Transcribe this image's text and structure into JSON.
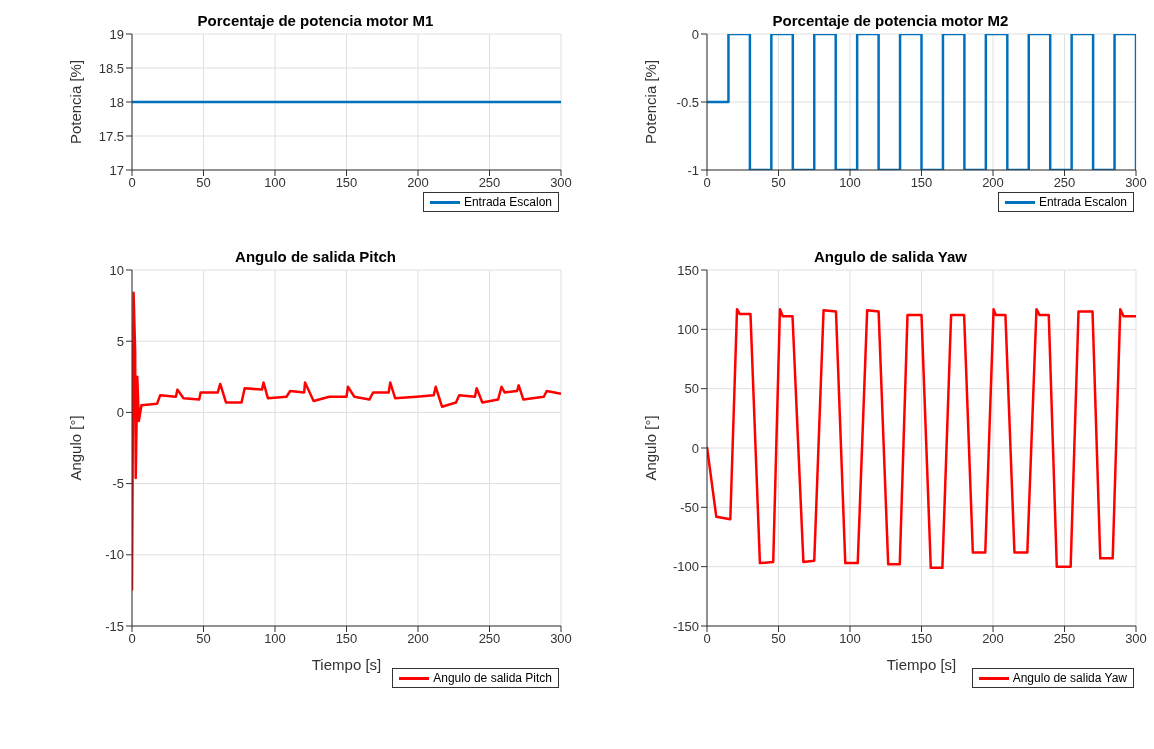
{
  "chart_data": [
    {
      "type": "line",
      "title": "Porcentaje de potencia motor M1",
      "ylabel": "Potencia [%]",
      "x": [
        0,
        300
      ],
      "series": [
        {
          "name": "Entrada Escalon",
          "color": "#0072bd",
          "values": [
            18,
            18
          ]
        }
      ],
      "xlim": [
        0,
        300
      ],
      "xticks": [
        0,
        50,
        100,
        150,
        200,
        250,
        300
      ],
      "ylim": [
        17,
        19
      ],
      "yticks": [
        17,
        17.5,
        18,
        18.5,
        19
      ],
      "grid": true,
      "legend": "bottom right"
    },
    {
      "type": "step",
      "title": "Porcentaje de potencia motor M2",
      "ylabel": "Potencia [%]",
      "x": [
        0,
        15,
        30,
        45,
        60,
        75,
        90,
        105,
        120,
        135,
        150,
        165,
        180,
        195,
        210,
        225,
        240,
        255,
        270,
        285,
        300
      ],
      "series": [
        {
          "name": "Entrada Escalon",
          "color": "#0072bd",
          "values": [
            -0.5,
            0,
            -1,
            0,
            -1,
            0,
            -1,
            0,
            -1,
            0,
            -1,
            0,
            -1,
            0,
            -1,
            0,
            -1,
            0,
            -1,
            0,
            -1
          ]
        }
      ],
      "xlim": [
        0,
        300
      ],
      "xticks": [
        0,
        50,
        100,
        150,
        200,
        250,
        300
      ],
      "ylim": [
        -1,
        0
      ],
      "yticks": [
        -1,
        -0.5,
        0
      ],
      "grid": true,
      "legend": "bottom right"
    },
    {
      "type": "line",
      "title": "Angulo de salida Pitch",
      "xlabel": "Tiempo [s]",
      "ylabel": "Angulo [°]",
      "x": [
        0,
        1.1,
        2.2,
        2.6,
        3.7,
        4.8,
        6.6,
        17.5,
        19.7,
        30.7,
        31.8,
        36,
        47,
        48,
        60,
        61.7,
        65.7,
        76.6,
        78.8,
        90.9,
        92,
        95,
        108,
        110.6,
        120.4,
        121,
        127,
        138,
        150,
        151,
        155.5,
        166,
        168.6,
        179.5,
        180.6,
        184,
        199,
        211,
        212.4,
        216.8,
        226.6,
        228.8,
        239.8,
        241,
        245,
        256,
        258.4,
        260.6,
        269.3,
        270.4,
        273.7,
        288,
        290,
        300
      ],
      "series": [
        {
          "name": "Angulo de salida Pitch",
          "color": "#ff0000",
          "values": [
            -12.5,
            8.4,
            4.3,
            -4.6,
            2.5,
            -0.6,
            0.5,
            0.6,
            1.2,
            1.1,
            1.6,
            1.0,
            0.9,
            1.4,
            1.4,
            2.0,
            0.7,
            0.7,
            1.7,
            1.6,
            2.1,
            1.0,
            1.1,
            1.5,
            1.4,
            2.1,
            0.8,
            1.1,
            1.1,
            1.8,
            1.1,
            0.9,
            1.4,
            1.4,
            2.1,
            1.0,
            1.1,
            1.2,
            1.8,
            0.4,
            0.7,
            1.2,
            1.1,
            1.7,
            0.7,
            0.9,
            1.8,
            1.4,
            1.5,
            1.9,
            0.9,
            1.1,
            1.5,
            1.3
          ]
        }
      ],
      "xlim": [
        0,
        300
      ],
      "xticks": [
        0,
        50,
        100,
        150,
        200,
        250,
        300
      ],
      "ylim": [
        -15,
        10
      ],
      "yticks": [
        -15,
        -10,
        -5,
        0,
        5,
        10
      ],
      "grid": true,
      "legend": "bottom right"
    },
    {
      "type": "line",
      "title": "Angulo de salida Yaw",
      "xlabel": "Tiempo [s]",
      "ylabel": "Angulo [°]",
      "x": [
        0,
        6.5,
        16.3,
        21,
        22.8,
        30.4,
        37,
        46.3,
        51,
        53,
        59.8,
        67.4,
        75,
        81.5,
        90.2,
        96.7,
        105.4,
        112,
        120,
        126.7,
        134.8,
        140.2,
        150,
        156.5,
        164.6,
        170.7,
        179.8,
        185.9,
        194.6,
        200.4,
        202,
        208.7,
        215,
        224,
        230.4,
        232.6,
        239,
        244.6,
        254.3,
        259.8,
        269.6,
        275,
        283.7,
        289,
        291.3,
        300
      ],
      "series": [
        {
          "name": "Angulo de salida Yaw",
          "color": "#ff0000",
          "values": [
            1,
            -58,
            -60,
            117,
            113,
            113,
            -97,
            -96,
            117,
            111,
            111,
            -96,
            -95,
            116,
            115,
            -97,
            -97,
            116,
            115,
            -98,
            -98,
            112,
            112,
            -101,
            -101,
            112,
            112,
            -88,
            -88,
            117,
            112,
            112,
            -88,
            -88,
            117,
            112,
            112,
            -100,
            -100,
            115,
            115,
            -93,
            -93,
            117,
            111,
            111
          ]
        }
      ],
      "xlim": [
        0,
        300
      ],
      "xticks": [
        0,
        50,
        100,
        150,
        200,
        250,
        300
      ],
      "ylim": [
        -150,
        150
      ],
      "yticks": [
        -150,
        -100,
        -50,
        0,
        50,
        100,
        150
      ],
      "grid": true,
      "legend": "bottom right"
    }
  ]
}
